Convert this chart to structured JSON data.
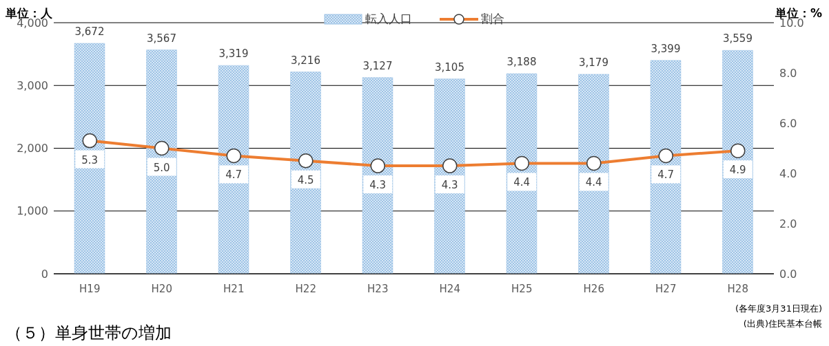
{
  "chart_data": {
    "type": "bar",
    "categories": [
      "H19",
      "H20",
      "H21",
      "H22",
      "H23",
      "H24",
      "H25",
      "H26",
      "H27",
      "H28"
    ],
    "series": [
      {
        "name": "転入人口",
        "color": "#9dc3e6",
        "values": [
          3672,
          3567,
          3319,
          3216,
          3127,
          3105,
          3188,
          3179,
          3399,
          3559
        ],
        "value_labels": [
          "3,672",
          "3,567",
          "3,319",
          "3,216",
          "3,127",
          "3,105",
          "3,188",
          "3,179",
          "3,399",
          "3,559"
        ]
      },
      {
        "name": "割合",
        "type": "line",
        "axis": "y2",
        "color": "#ed7d31",
        "marker": "circle",
        "values": [
          5.3,
          5.0,
          4.7,
          4.5,
          4.3,
          4.3,
          4.4,
          4.4,
          4.7,
          4.9
        ],
        "value_labels": [
          "5.3",
          "5.0",
          "4.7",
          "4.5",
          "4.3",
          "4.3",
          "4.4",
          "4.4",
          "4.7",
          "4.9"
        ]
      }
    ],
    "ylabel": "単位：人",
    "y2label": "単位：%",
    "ylim": [
      0,
      4000
    ],
    "yticks": [
      {
        "value": 0,
        "label": "0"
      },
      {
        "value": 1000,
        "label": "1,000"
      },
      {
        "value": 2000,
        "label": "2,000"
      },
      {
        "value": 3000,
        "label": "3,000"
      },
      {
        "value": 4000,
        "label": "4,000"
      }
    ],
    "y2lim": [
      0,
      10
    ],
    "y2ticks": [
      {
        "value": 0,
        "label": "0.0"
      },
      {
        "value": 2,
        "label": "2.0"
      },
      {
        "value": 4,
        "label": "4.0"
      },
      {
        "value": 6,
        "label": "6.0"
      },
      {
        "value": 8,
        "label": "8.0"
      },
      {
        "value": 10,
        "label": "10.0"
      }
    ],
    "grid": "y",
    "legend": "top",
    "annotations": [
      "(各年度3月31日現在)",
      "(出典)住民基本台帳",
      "（５）単身世帯の増加"
    ]
  }
}
